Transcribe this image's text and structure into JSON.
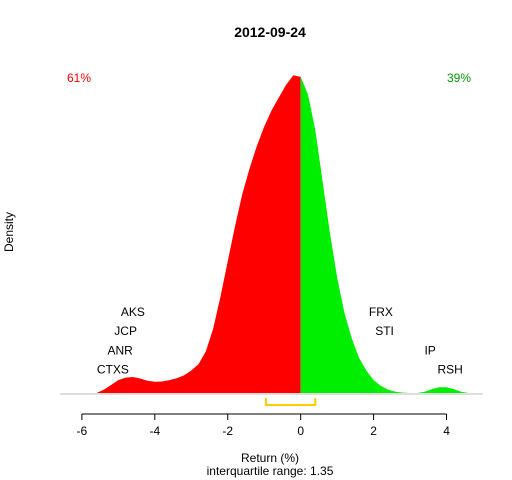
{
  "chart_data": {
    "type": "area",
    "title": "2012-09-24",
    "xlabel": "Return (%)",
    "ylabel": "Density",
    "subtitle": "interquartile range: 1.35",
    "xlim": [
      -6.6,
      5.0
    ],
    "ylim": [
      0,
      1
    ],
    "x_ticks": [
      "-6",
      "-4",
      "-2",
      "0",
      "2",
      "4"
    ],
    "x_tick_values": [
      -6,
      -4,
      -2,
      0,
      2,
      4
    ],
    "split_at": 0,
    "left_color": "#ff0000",
    "right_color": "#00ee00",
    "left_pct": "61%",
    "right_pct": "39%",
    "interquartile": {
      "q1": -0.95,
      "q3": 0.4,
      "color": "#ffcc00"
    },
    "density": {
      "x": [
        -5.6,
        -5.4,
        -5.2,
        -5.0,
        -4.8,
        -4.6,
        -4.4,
        -4.2,
        -4.0,
        -3.8,
        -3.6,
        -3.4,
        -3.2,
        -3.0,
        -2.8,
        -2.6,
        -2.4,
        -2.2,
        -2.0,
        -1.8,
        -1.6,
        -1.4,
        -1.2,
        -1.0,
        -0.8,
        -0.6,
        -0.4,
        -0.2,
        0.0,
        0.2,
        0.4,
        0.6,
        0.8,
        1.0,
        1.2,
        1.4,
        1.6,
        1.8,
        2.0,
        2.2,
        2.4,
        2.6,
        2.8,
        3.0,
        3.2,
        3.4,
        3.6,
        3.8,
        4.0,
        4.2,
        4.4,
        4.6
      ],
      "y": [
        0.0,
        0.01,
        0.025,
        0.04,
        0.048,
        0.05,
        0.045,
        0.038,
        0.035,
        0.036,
        0.04,
        0.046,
        0.055,
        0.07,
        0.09,
        0.13,
        0.2,
        0.3,
        0.41,
        0.52,
        0.62,
        0.7,
        0.77,
        0.83,
        0.88,
        0.92,
        0.96,
        0.99,
        0.985,
        0.93,
        0.82,
        0.66,
        0.5,
        0.36,
        0.25,
        0.17,
        0.11,
        0.07,
        0.04,
        0.022,
        0.01,
        0.004,
        0.001,
        0.0,
        0.0,
        0.004,
        0.012,
        0.018,
        0.018,
        0.012,
        0.004,
        0.0
      ]
    },
    "annotations": [
      {
        "text": "AKS",
        "x": -4.6,
        "y": 0.24
      },
      {
        "text": "JCP",
        "x": -4.8,
        "y": 0.18
      },
      {
        "text": "ANR",
        "x": -4.95,
        "y": 0.12
      },
      {
        "text": "CTXS",
        "x": -5.15,
        "y": 0.06
      },
      {
        "text": "FRX",
        "x": 2.2,
        "y": 0.24
      },
      {
        "text": "STI",
        "x": 2.3,
        "y": 0.18
      },
      {
        "text": "IP",
        "x": 3.55,
        "y": 0.12
      },
      {
        "text": "RSH",
        "x": 4.1,
        "y": 0.06
      }
    ]
  }
}
